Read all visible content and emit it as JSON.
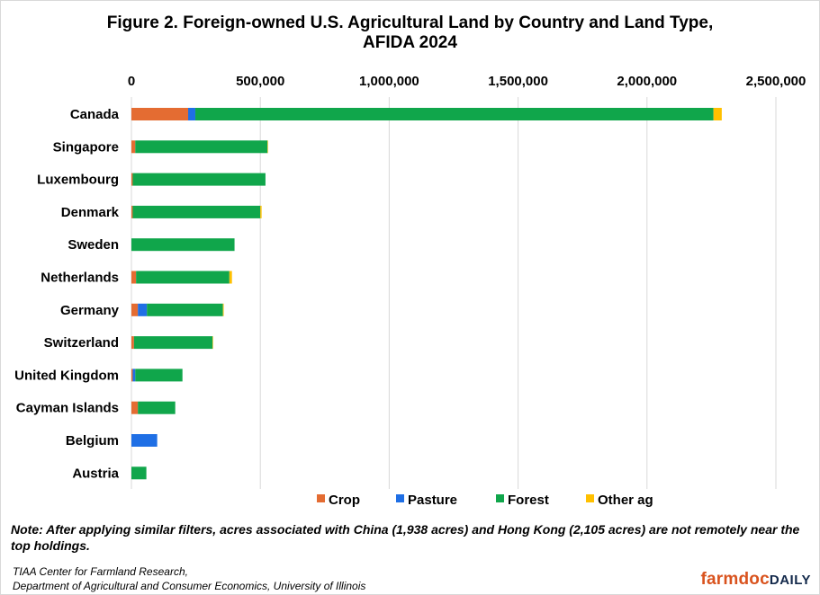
{
  "chart_data": {
    "type": "bar",
    "orientation": "horizontal",
    "stacked": true,
    "title_lines": [
      "Figure 2. Foreign-owned U.S. Agricultural Land by Country and Land Type,",
      "AFIDA 2024"
    ],
    "categories": [
      "Canada",
      "Singapore",
      "Luxembourg",
      "Denmark",
      "Sweden",
      "Netherlands",
      "Germany",
      "Switzerland",
      "United Kingdom",
      "Cayman Islands",
      "Belgium",
      "Austria"
    ],
    "series": [
      {
        "name": "Crop",
        "color": "#e46c32",
        "values": [
          220000,
          15000,
          5000,
          5000,
          0,
          18000,
          25000,
          10000,
          5000,
          25000,
          0,
          0
        ]
      },
      {
        "name": "Pasture",
        "color": "#1f6fe5",
        "values": [
          28000,
          0,
          0,
          0,
          0,
          0,
          35000,
          0,
          10000,
          0,
          100000,
          0
        ]
      },
      {
        "name": "Forest",
        "color": "#10a64b",
        "values": [
          2010000,
          513000,
          515000,
          495000,
          400000,
          362000,
          295000,
          305000,
          183000,
          145000,
          0,
          58000
        ]
      },
      {
        "name": "Other ag",
        "color": "#ffc000",
        "values": [
          32000,
          2000,
          0,
          5000,
          0,
          10000,
          3000,
          2000,
          0,
          0,
          0,
          0
        ]
      }
    ],
    "x_ticks": [
      "0",
      "500,000",
      "1,000,000",
      "1,500,000",
      "2,000,000",
      "2,500,000"
    ],
    "xlim": [
      0,
      2500000
    ],
    "gridlines": true,
    "legend_position": "bottom"
  },
  "note": "Note: After applying similar filters, acres associated with China (1,938 acres) and Hong Kong (2,105 acres) are not remotely near the top holdings.",
  "source_lines": [
    "TIAA Center for Farmland Research,",
    "Department of Agricultural and Consumer Economics, University of Illinois"
  ],
  "logo": {
    "part1": "farmdoc",
    "part2": "DAILY"
  }
}
